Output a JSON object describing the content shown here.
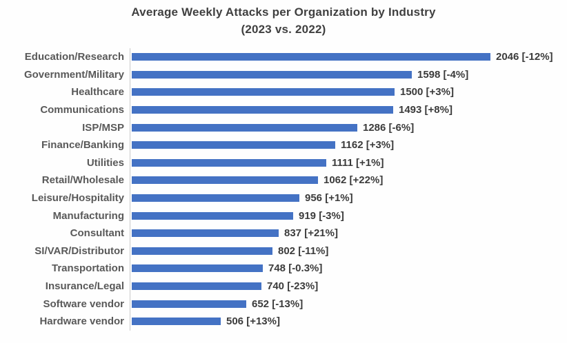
{
  "title": {
    "line1": "Average Weekly Attacks per Organization by Industry",
    "line2": "(2023 vs. 2022)"
  },
  "chart_data": {
    "type": "bar",
    "orientation": "horizontal",
    "title": "Average Weekly Attacks per Organization by Industry (2023 vs. 2022)",
    "xlabel": "",
    "ylabel": "",
    "xlim": [
      0,
      2100
    ],
    "grid": "off",
    "legend": "none",
    "categories": [
      "Education/Research",
      "Government/Military",
      "Healthcare",
      "Communications",
      "ISP/MSP",
      "Finance/Banking",
      "Utilities",
      "Retail/Wholesale",
      "Leisure/Hospitality",
      "Manufacturing",
      "Consultant",
      "SI/VAR/Distributor",
      "Transportation",
      "Insurance/Legal",
      "Software vendor",
      "Hardware vendor"
    ],
    "values": [
      2046,
      1598,
      1500,
      1493,
      1286,
      1162,
      1111,
      1062,
      956,
      919,
      837,
      802,
      748,
      740,
      652,
      506
    ],
    "change_labels": [
      "-12%",
      "-4%",
      "+3%",
      "+8%",
      "-6%",
      "+3%",
      "+1%",
      "+22%",
      "+1%",
      "-3%",
      "+21%",
      "-11%",
      "-0.3%",
      "-23%",
      "-13%",
      "+13%"
    ],
    "value_label_format": "{value} [{change}]"
  },
  "colors": {
    "bar": "#4472C4",
    "title_text": "#404040",
    "category_text": "#595959",
    "value_text": "#3b3b3b",
    "axis_line": "#c9c9c9",
    "background": "#fefefe"
  }
}
